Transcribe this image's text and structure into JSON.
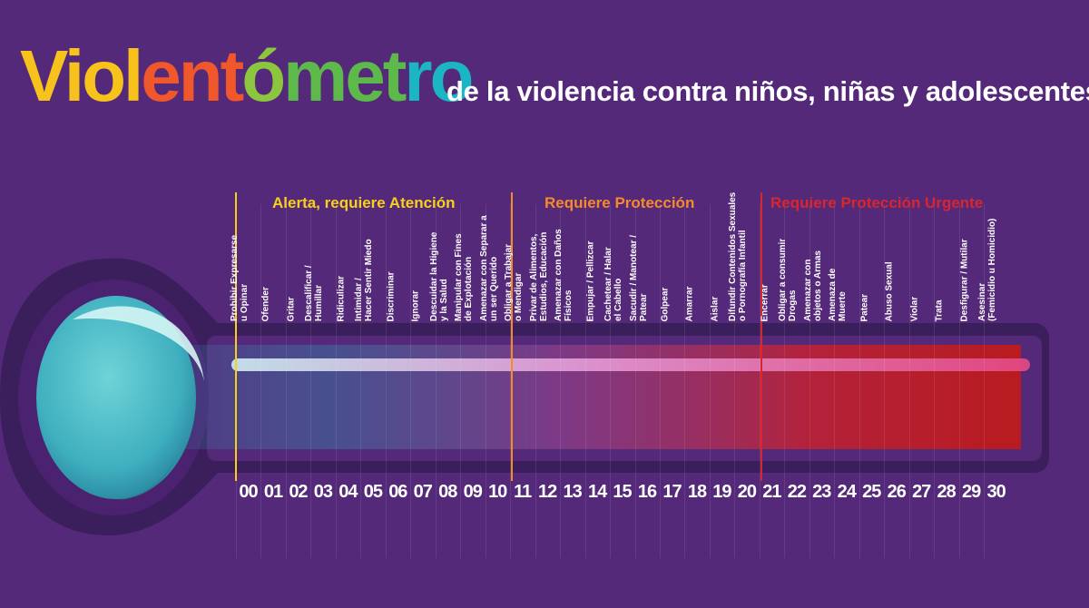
{
  "title": {
    "letters": [
      {
        "text": "Viol",
        "color": "#f7c21c"
      },
      {
        "text": "ent",
        "color": "#f0572b"
      },
      {
        "text": "ó",
        "color": "#8cc63f"
      },
      {
        "text": "met",
        "color": "#5cb94a"
      },
      {
        "text": "ro",
        "color": "#1bb6c4"
      }
    ],
    "subtitle": "de la violencia contra niños, niñas y adolescentes"
  },
  "zones": [
    {
      "label": "Alerta, requiere Atención",
      "color": "#f7d117"
    },
    {
      "label": "Requiere Protección",
      "color": "#f58a2b"
    },
    {
      "label": "Requiere Protección Urgente",
      "color": "#d8262e"
    }
  ],
  "items": [
    {
      "number": "00",
      "label": [
        "Prohibir Expresarse",
        "u Opinar"
      ]
    },
    {
      "number": "01",
      "label": [
        "Ofender"
      ]
    },
    {
      "number": "02",
      "label": [
        "Gritar"
      ]
    },
    {
      "number": "03",
      "label": [
        "Descalificar /",
        "Humillar"
      ]
    },
    {
      "number": "04",
      "label": [
        "Ridiculizar"
      ]
    },
    {
      "number": "05",
      "label": [
        "Intimidar /",
        "Hacer Sentir Miedo"
      ]
    },
    {
      "number": "06",
      "label": [
        "Discriminar"
      ]
    },
    {
      "number": "07",
      "label": [
        "Ignorar"
      ]
    },
    {
      "number": "08",
      "label": [
        "Descuidar la Higiene",
        "y la Salud"
      ]
    },
    {
      "number": "09",
      "label": [
        "Manipular con Fines",
        "de Explotación"
      ]
    },
    {
      "number": "10",
      "label": [
        "Amenazar con Separar a",
        "un ser Querido"
      ]
    },
    {
      "number": "11",
      "label": [
        "Obligar a Trabajar",
        "o Mendigar"
      ]
    },
    {
      "number": "12",
      "label": [
        "Privar  de Alimentos,",
        "Estudios, Educación"
      ]
    },
    {
      "number": "13",
      "label": [
        "Amenazar con Daños",
        "Físicos"
      ]
    },
    {
      "number": "14",
      "label": [
        "Empujar / Pellizcar"
      ]
    },
    {
      "number": "15",
      "label": [
        "Cachetear / Halar",
        "el Cabello"
      ]
    },
    {
      "number": "16",
      "label": [
        "Sacudir / Manotear /",
        "Patear"
      ]
    },
    {
      "number": "17",
      "label": [
        "Golpear"
      ]
    },
    {
      "number": "18",
      "label": [
        "Amarrar"
      ]
    },
    {
      "number": "19",
      "label": [
        "Aislar"
      ]
    },
    {
      "number": "20",
      "label": [
        "Difundir Contenidos Sexuales",
        "o Pornografía Infantil"
      ]
    },
    {
      "number": "21",
      "label": [
        "Encerrar"
      ]
    },
    {
      "number": "22",
      "label": [
        "Obligar a consumir",
        "Drogas"
      ]
    },
    {
      "number": "23",
      "label": [
        "Amenazar con",
        "objetos o Armas"
      ]
    },
    {
      "number": "24",
      "label": [
        "Amenaza de",
        "Muerte"
      ]
    },
    {
      "number": "25",
      "label": [
        "Patear"
      ]
    },
    {
      "number": "26",
      "label": [
        "Abuso Sexual"
      ]
    },
    {
      "number": "27",
      "label": [
        "Violar"
      ]
    },
    {
      "number": "28",
      "label": [
        "Trata"
      ]
    },
    {
      "number": "29",
      "label": [
        "Desfigurar / Mutilar"
      ]
    },
    {
      "number": "30",
      "label": [
        "Asesinar",
        "(Femicidio u Homicidio)"
      ]
    }
  ],
  "colors": {
    "background": "#55297a",
    "thermometer_outline": "#3b1f5c",
    "bulb": "#5ec8cf",
    "bar_start": "#4fb3c5",
    "bar_end": "#b81b1f"
  }
}
